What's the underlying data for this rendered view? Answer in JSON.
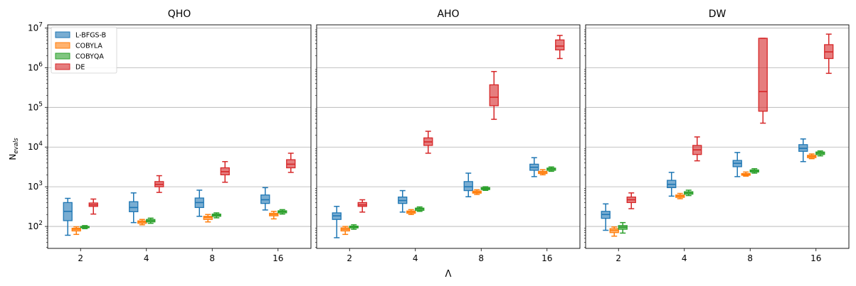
{
  "figure": {
    "ylabel_main": "N",
    "ylabel_sub": "evals",
    "xlabel": "Λ"
  },
  "legend": {
    "placement": "top-left",
    "entries": [
      "L-BFGS-B",
      "COBYLA",
      "COBYQA",
      "DE"
    ]
  },
  "colors": {
    "L-BFGS-B": "#1f77b4",
    "COBYLA": "#ff7f0e",
    "COBYQA": "#2ca02c",
    "DE": "#d62728"
  },
  "chart_data": [
    {
      "type": "box",
      "title": "QHO",
      "categories": [
        "2",
        "4",
        "8",
        "16"
      ],
      "yscale": "log",
      "ylim": [
        28,
        12000000
      ],
      "grid": "y-major",
      "yticks": [
        {
          "value": 100,
          "base": "10",
          "exp": "2"
        },
        {
          "value": 1000,
          "base": "10",
          "exp": "3"
        },
        {
          "value": 10000,
          "base": "10",
          "exp": "4"
        },
        {
          "value": 100000,
          "base": "10",
          "exp": "5"
        },
        {
          "value": 1000000,
          "base": "10",
          "exp": "6"
        },
        {
          "value": 10000000,
          "base": "10",
          "exp": "7"
        }
      ],
      "series": [
        {
          "name": "L-BFGS-B",
          "boxes": [
            {
              "whislo": 60,
              "q1": 140,
              "med": 240,
              "q3": 400,
              "whishi": 510
            },
            {
              "whislo": 125,
              "q1": 235,
              "med": 300,
              "q3": 420,
              "whishi": 700
            },
            {
              "whislo": 180,
              "q1": 300,
              "med": 400,
              "q3": 520,
              "whishi": 820
            },
            {
              "whislo": 260,
              "q1": 380,
              "med": 470,
              "q3": 620,
              "whishi": 950
            }
          ]
        },
        {
          "name": "COBYLA",
          "boxes": [
            {
              "whislo": 63,
              "q1": 77,
              "med": 85,
              "q3": 90,
              "whishi": 98
            },
            {
              "whislo": 110,
              "q1": 120,
              "med": 130,
              "q3": 138,
              "whishi": 150
            },
            {
              "whislo": 130,
              "q1": 150,
              "med": 170,
              "q3": 180,
              "whishi": 200
            },
            {
              "whislo": 155,
              "q1": 185,
              "med": 200,
              "q3": 215,
              "whishi": 240
            }
          ]
        },
        {
          "name": "COBYQA",
          "boxes": [
            {
              "whislo": 88,
              "q1": 93,
              "med": 97,
              "q3": 100,
              "whishi": 105
            },
            {
              "whislo": 120,
              "q1": 130,
              "med": 140,
              "q3": 150,
              "whishi": 162
            },
            {
              "whislo": 165,
              "q1": 180,
              "med": 192,
              "q3": 205,
              "whishi": 220
            },
            {
              "whislo": 205,
              "q1": 220,
              "med": 235,
              "q3": 248,
              "whishi": 265
            }
          ]
        },
        {
          "name": "DE",
          "boxes": [
            {
              "whislo": 205,
              "q1": 320,
              "med": 350,
              "q3": 390,
              "whishi": 490
            },
            {
              "whislo": 720,
              "q1": 1000,
              "med": 1150,
              "q3": 1350,
              "whishi": 1900
            },
            {
              "whislo": 1300,
              "q1": 2000,
              "med": 2400,
              "q3": 3000,
              "whishi": 4300
            },
            {
              "whislo": 2300,
              "q1": 3000,
              "med": 3700,
              "q3": 4800,
              "whishi": 7000
            }
          ]
        }
      ]
    },
    {
      "type": "box",
      "title": "AHO",
      "categories": [
        "2",
        "4",
        "8",
        "16"
      ],
      "yscale": "log",
      "ylim": [
        28,
        12000000
      ],
      "grid": "y-major",
      "series": [
        {
          "name": "L-BFGS-B",
          "boxes": [
            {
              "whislo": 52,
              "q1": 150,
              "med": 185,
              "q3": 220,
              "whishi": 320
            },
            {
              "whislo": 230,
              "q1": 380,
              "med": 450,
              "q3": 550,
              "whishi": 800
            },
            {
              "whislo": 560,
              "q1": 800,
              "med": 1000,
              "q3": 1350,
              "whishi": 2200
            },
            {
              "whislo": 1800,
              "q1": 2600,
              "med": 3100,
              "q3": 3700,
              "whishi": 5400
            }
          ]
        },
        {
          "name": "COBYLA",
          "boxes": [
            {
              "whislo": 63,
              "q1": 77,
              "med": 85,
              "q3": 92,
              "whishi": 100
            },
            {
              "whislo": 200,
              "q1": 215,
              "med": 230,
              "q3": 245,
              "whishi": 265
            },
            {
              "whislo": 640,
              "q1": 690,
              "med": 730,
              "q3": 780,
              "whishi": 840
            },
            {
              "whislo": 2000,
              "q1": 2150,
              "med": 2300,
              "q3": 2450,
              "whishi": 2700
            }
          ]
        },
        {
          "name": "COBYQA",
          "boxes": [
            {
              "whislo": 85,
              "q1": 92,
              "med": 97,
              "q3": 102,
              "whishi": 110
            },
            {
              "whislo": 240,
              "q1": 255,
              "med": 275,
              "q3": 290,
              "whishi": 310
            },
            {
              "whislo": 810,
              "q1": 850,
              "med": 900,
              "q3": 950,
              "whishi": 1000
            },
            {
              "whislo": 2450,
              "q1": 2600,
              "med": 2800,
              "q3": 2950,
              "whishi": 3150
            }
          ]
        },
        {
          "name": "DE",
          "boxes": [
            {
              "whislo": 230,
              "q1": 320,
              "med": 350,
              "q3": 400,
              "whishi": 470
            },
            {
              "whislo": 7000,
              "q1": 11000,
              "med": 13500,
              "q3": 17000,
              "whishi": 25000
            },
            {
              "whislo": 50000,
              "q1": 110000,
              "med": 180000,
              "q3": 370000,
              "whishi": 800000
            },
            {
              "whislo": 1700000,
              "q1": 2800000,
              "med": 3500000,
              "q3": 5000000,
              "whishi": 6500000
            }
          ]
        }
      ]
    },
    {
      "type": "box",
      "title": "DW",
      "categories": [
        "2",
        "4",
        "8",
        "16"
      ],
      "yscale": "log",
      "ylim": [
        28,
        12000000
      ],
      "grid": "y-major",
      "series": [
        {
          "name": "L-BFGS-B",
          "boxes": [
            {
              "whislo": 80,
              "q1": 160,
              "med": 200,
              "q3": 240,
              "whishi": 370
            },
            {
              "whislo": 580,
              "q1": 950,
              "med": 1150,
              "q3": 1450,
              "whishi": 2300
            },
            {
              "whislo": 1800,
              "q1": 3200,
              "med": 3900,
              "q3": 4600,
              "whishi": 7300
            },
            {
              "whislo": 4300,
              "q1": 7800,
              "med": 9200,
              "q3": 11500,
              "whishi": 16000
            }
          ]
        },
        {
          "name": "COBYLA",
          "boxes": [
            {
              "whislo": 57,
              "q1": 70,
              "med": 80,
              "q3": 88,
              "whishi": 97
            },
            {
              "whislo": 500,
              "q1": 540,
              "med": 580,
              "q3": 620,
              "whishi": 680
            },
            {
              "whislo": 1850,
              "q1": 1950,
              "med": 2050,
              "q3": 2150,
              "whishi": 2350
            },
            {
              "whislo": 5100,
              "q1": 5400,
              "med": 5800,
              "q3": 6200,
              "whishi": 6700
            }
          ]
        },
        {
          "name": "COBYQA",
          "boxes": [
            {
              "whislo": 68,
              "q1": 85,
              "med": 95,
              "q3": 105,
              "whishi": 125
            },
            {
              "whislo": 600,
              "q1": 650,
              "med": 700,
              "q3": 750,
              "whishi": 820
            },
            {
              "whislo": 2200,
              "q1": 2350,
              "med": 2500,
              "q3": 2650,
              "whishi": 2850
            },
            {
              "whislo": 6000,
              "q1": 6500,
              "med": 7000,
              "q3": 7500,
              "whishi": 8000
            }
          ]
        },
        {
          "name": "DE",
          "boxes": [
            {
              "whislo": 280,
              "q1": 400,
              "med": 470,
              "q3": 550,
              "whishi": 700
            },
            {
              "whislo": 4500,
              "q1": 6500,
              "med": 8500,
              "q3": 11000,
              "whishi": 18000
            },
            {
              "whislo": 40000,
              "q1": 80000,
              "med": 250000,
              "q3": 5500000,
              "whishi": 5500000
            },
            {
              "whislo": 720000,
              "q1": 1700000,
              "med": 2500000,
              "q3": 3800000,
              "whishi": 7000000
            }
          ]
        }
      ]
    }
  ]
}
